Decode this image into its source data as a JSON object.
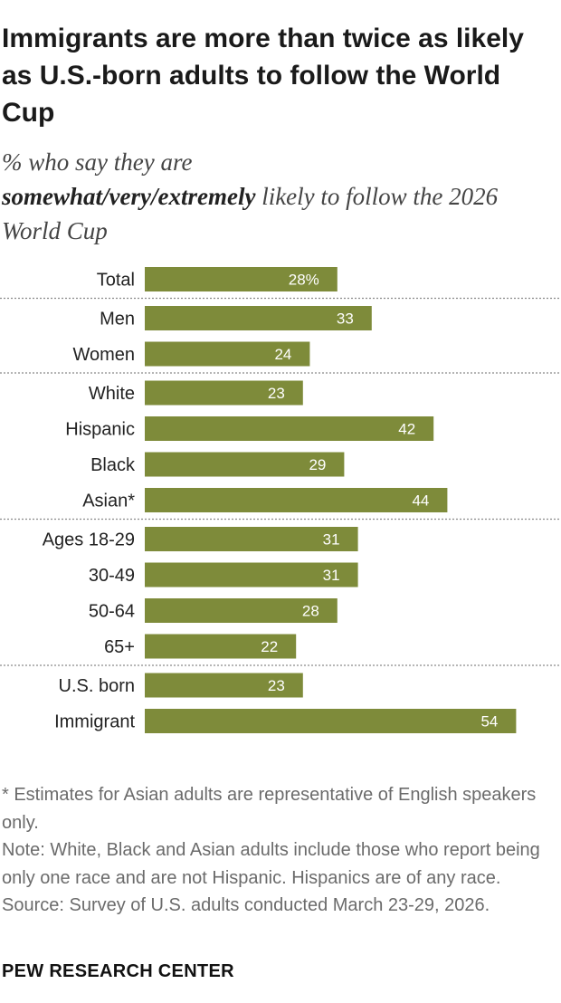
{
  "title": "Immigrants are more than twice as likely as U.S.-born adults to follow the World Cup",
  "subtitle": {
    "pre": "% who say they are",
    "bold": "somewhat/very/extremely",
    "post": " likely to follow the 2026 World Cup"
  },
  "chart_data": {
    "type": "bar",
    "orientation": "horizontal",
    "categories": [
      "Total",
      "Men",
      "Women",
      "White",
      "Hispanic",
      "Black",
      "Asian*",
      "Ages 18-29",
      "30-49",
      "50-64",
      "65+",
      "U.S. born",
      "Immigrant"
    ],
    "values": [
      28,
      33,
      24,
      23,
      42,
      29,
      44,
      31,
      31,
      28,
      22,
      23,
      54
    ],
    "data_labels": [
      "28%",
      "33",
      "24",
      "23",
      "42",
      "29",
      "44",
      "31",
      "31",
      "28",
      "22",
      "23",
      "54"
    ],
    "groups": [
      [
        "Total"
      ],
      [
        "Men",
        "Women"
      ],
      [
        "White",
        "Hispanic",
        "Black",
        "Asian*"
      ],
      [
        "Ages 18-29",
        "30-49",
        "50-64",
        "65+"
      ],
      [
        "U.S. born",
        "Immigrant"
      ]
    ],
    "xlim": [
      0,
      54
    ],
    "grid": false,
    "bar_color": "#7e8b3a",
    "label_color": "#ffffff",
    "separator_color": "#8a8a8a"
  },
  "notes": {
    "asterisk": "* Estimates for Asian adults are representative of English speakers only.",
    "note": "Note: White, Black and Asian adults include those who report being only one race and are not Hispanic. Hispanics are of any race.",
    "source": "Source: Survey of U.S. adults conducted March 23-29, 2026."
  },
  "logo": "PEW RESEARCH CENTER"
}
